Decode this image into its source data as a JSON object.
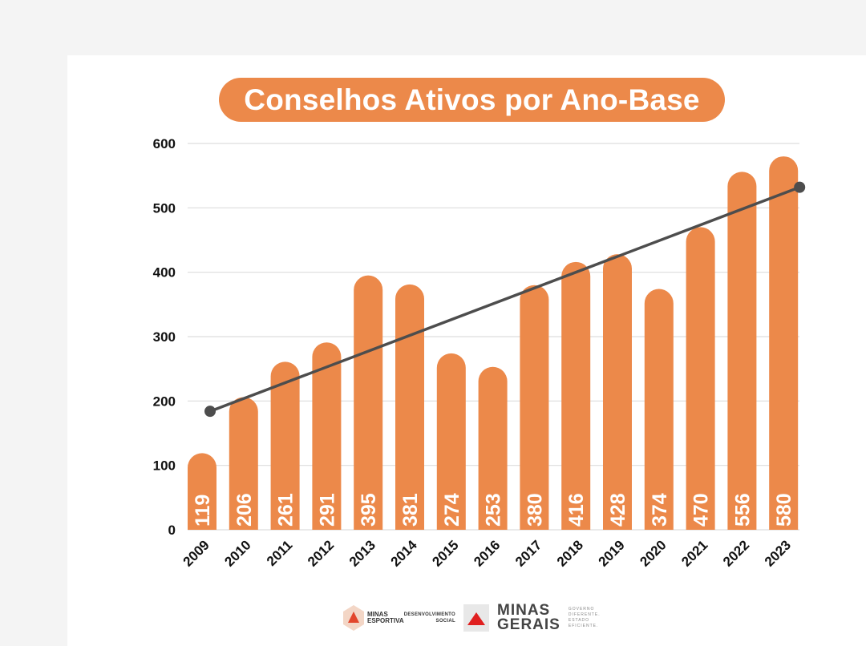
{
  "chart_data": {
    "type": "bar",
    "title": "Conselhos Ativos por Ano-Base",
    "xlabel": "",
    "ylabel": "",
    "categories": [
      "2009",
      "2010",
      "2011",
      "2012",
      "2013",
      "2014",
      "2015",
      "2016",
      "2017",
      "2018",
      "2019",
      "2020",
      "2021",
      "2022",
      "2023"
    ],
    "values": [
      119,
      206,
      261,
      291,
      395,
      381,
      274,
      253,
      380,
      416,
      428,
      374,
      470,
      556,
      580
    ],
    "value_labels": [
      "119",
      "206",
      "261",
      "291",
      "395",
      "381",
      "274",
      "253",
      "380",
      "416",
      "428",
      "374",
      "470",
      "556",
      "580"
    ],
    "ylim": [
      0,
      600
    ],
    "yticks": [
      0,
      100,
      200,
      300,
      400,
      500,
      600
    ],
    "ytick_labels": [
      "0",
      "100",
      "200",
      "300",
      "400",
      "500",
      "600"
    ],
    "grid": true,
    "legend": "none",
    "trendline": {
      "type": "linear",
      "start": {
        "x": "2009",
        "y": 184
      },
      "end": {
        "x": "2023",
        "y": 532
      }
    },
    "colors": {
      "bar": "#ec894a",
      "trendline": "#4d4d4d",
      "grid": "#dddddd",
      "title_bg": "#ec894a"
    }
  },
  "footer": {
    "logo1": "MINAS ESPORTIVA",
    "logo2": "DESENVOLVIMENTO SOCIAL",
    "logo3_line1": "MINAS",
    "logo3_line2": "GERAIS",
    "logo3_tagline": "GOVERNO DIFERENTE. ESTADO EFICIENTE."
  }
}
